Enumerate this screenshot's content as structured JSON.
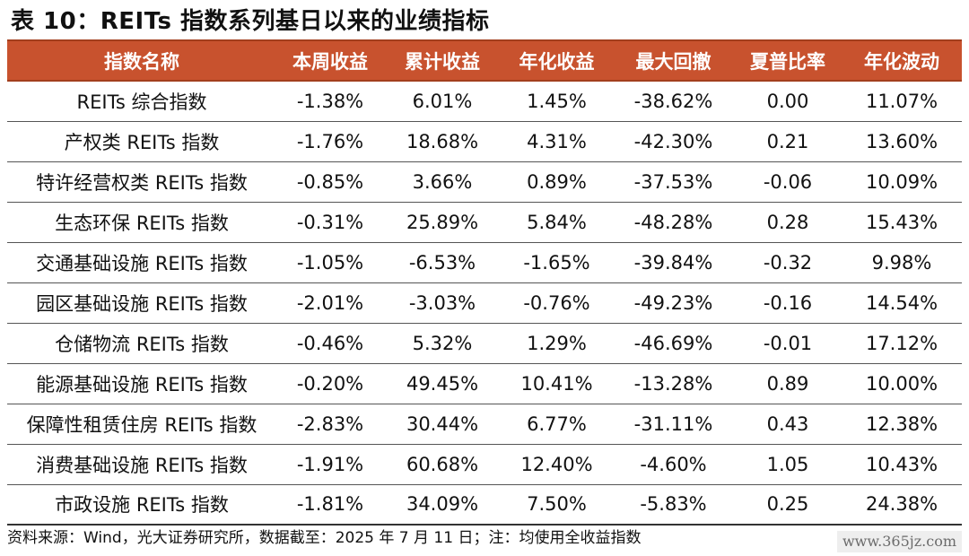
{
  "title": "表 10：REITs 指数系列基日以来的业绩指标",
  "headers": [
    "指数名称",
    "本周收益",
    "累计收益",
    "年化收益",
    "最大回撤",
    "夏普比率",
    "年化波动"
  ],
  "rows": [
    [
      "REITs 综合指数",
      "-1.38%",
      "6.01%",
      "1.45%",
      "-38.62%",
      "0.00",
      "11.07%"
    ],
    [
      "产权类 REITs 指数",
      "-1.76%",
      "18.68%",
      "4.31%",
      "-42.30%",
      "0.21",
      "13.60%"
    ],
    [
      "特许经营权类 REITs 指数",
      "-0.85%",
      "3.66%",
      "0.89%",
      "-37.53%",
      "-0.06",
      "10.09%"
    ],
    [
      "生态环保 REITs 指数",
      "-0.31%",
      "25.89%",
      "5.84%",
      "-48.28%",
      "0.28",
      "15.43%"
    ],
    [
      "交通基础设施 REITs 指数",
      "-1.05%",
      "-6.53%",
      "-1.65%",
      "-39.84%",
      "-0.32",
      "9.98%"
    ],
    [
      "园区基础设施 REITs 指数",
      "-2.01%",
      "-3.03%",
      "-0.76%",
      "-49.23%",
      "-0.16",
      "14.54%"
    ],
    [
      "仓储物流 REITs 指数",
      "-0.46%",
      "5.32%",
      "1.29%",
      "-46.69%",
      "-0.01",
      "17.12%"
    ],
    [
      "能源基础设施 REITs 指数",
      "-0.20%",
      "49.45%",
      "10.41%",
      "-13.28%",
      "0.89",
      "10.00%"
    ],
    [
      "保障性租赁住房 REITs 指数",
      "-2.83%",
      "30.44%",
      "6.77%",
      "-31.11%",
      "0.43",
      "12.38%"
    ],
    [
      "消费基础设施 REITs 指数",
      "-1.91%",
      "60.68%",
      "12.40%",
      "-4.60%",
      "1.05",
      "10.43%"
    ],
    [
      "市政设施 REITs 指数",
      "-1.81%",
      "34.09%",
      "7.50%",
      "-5.83%",
      "0.25",
      "24.38%"
    ]
  ],
  "footer": "资料来源：Wind，光大证券研究所，数据截至：2025 年 7 月 11 日；注：均使用全收益指数",
  "watermark": "www.365jz.com",
  "colors": {
    "header_bg": "#c8522e",
    "header_text": "#ffffff"
  }
}
